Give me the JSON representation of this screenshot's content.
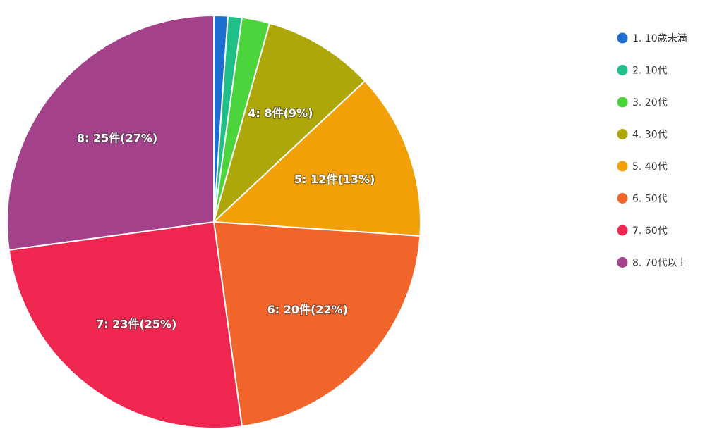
{
  "chart_data": {
    "type": "pie",
    "title": "",
    "legend_position": "right",
    "slices": [
      {
        "legend": "1. 10歳未満",
        "value": 1,
        "color": "#1c6fd1",
        "label": ""
      },
      {
        "legend": "2. 10代",
        "value": 1,
        "color": "#1fbf87",
        "label": ""
      },
      {
        "legend": "3. 20代",
        "value": 2,
        "color": "#4cd43c",
        "label": ""
      },
      {
        "legend": "4. 30代",
        "value": 8,
        "color": "#aea70a",
        "label": "4: 8件(9%)"
      },
      {
        "legend": "5. 40代",
        "value": 12,
        "color": "#f2a007",
        "label": "5: 12件(13%)"
      },
      {
        "legend": "6. 50代",
        "value": 20,
        "color": "#f2652a",
        "label": "6: 20件(22%)"
      },
      {
        "legend": "7. 60代",
        "value": 23,
        "color": "#ee2650",
        "label": "7: 23件(25%)"
      },
      {
        "legend": "8. 70代以上",
        "value": 25,
        "color": "#a3428a",
        "label": "8: 25件(27%)"
      }
    ]
  }
}
